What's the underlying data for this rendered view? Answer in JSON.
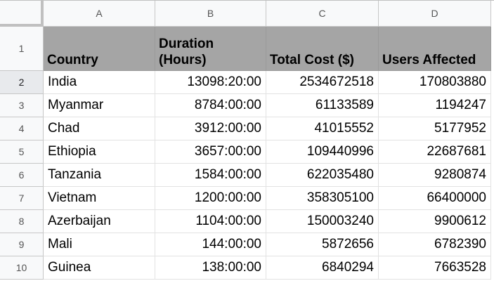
{
  "columns": [
    "A",
    "B",
    "C",
    "D"
  ],
  "headers": [
    "Country",
    "Duration\n(Hours)",
    "Total Cost ($)",
    "Users Affected"
  ],
  "header_row_number": "1",
  "rows": [
    {
      "n": "2",
      "country": "India",
      "duration": "13098:20:00",
      "cost": "2534672518",
      "users": "170803880"
    },
    {
      "n": "3",
      "country": "Myanmar",
      "duration": "8784:00:00",
      "cost": "61133589",
      "users": "1194247"
    },
    {
      "n": "4",
      "country": "Chad",
      "duration": "3912:00:00",
      "cost": "41015552",
      "users": "5177952"
    },
    {
      "n": "5",
      "country": "Ethiopia",
      "duration": "3657:00:00",
      "cost": "109440996",
      "users": "22687681"
    },
    {
      "n": "6",
      "country": "Tanzania",
      "duration": "1584:00:00",
      "cost": "622035480",
      "users": "9280874"
    },
    {
      "n": "7",
      "country": "Vietnam",
      "duration": "1200:00:00",
      "cost": "358305100",
      "users": "66400000"
    },
    {
      "n": "8",
      "country": "Azerbaijan",
      "duration": "1104:00:00",
      "cost": "150003240",
      "users": "9900612"
    },
    {
      "n": "9",
      "country": "Mali",
      "duration": "144:00:00",
      "cost": "5872656",
      "users": "6782390"
    },
    {
      "n": "10",
      "country": "Guinea",
      "duration": "138:00:00",
      "cost": "6840294",
      "users": "7663528"
    }
  ],
  "colors": {
    "header_fill": "#a5a5a5",
    "chrome_fill": "#f8f9fa",
    "gridline": "#e2e2e2"
  }
}
